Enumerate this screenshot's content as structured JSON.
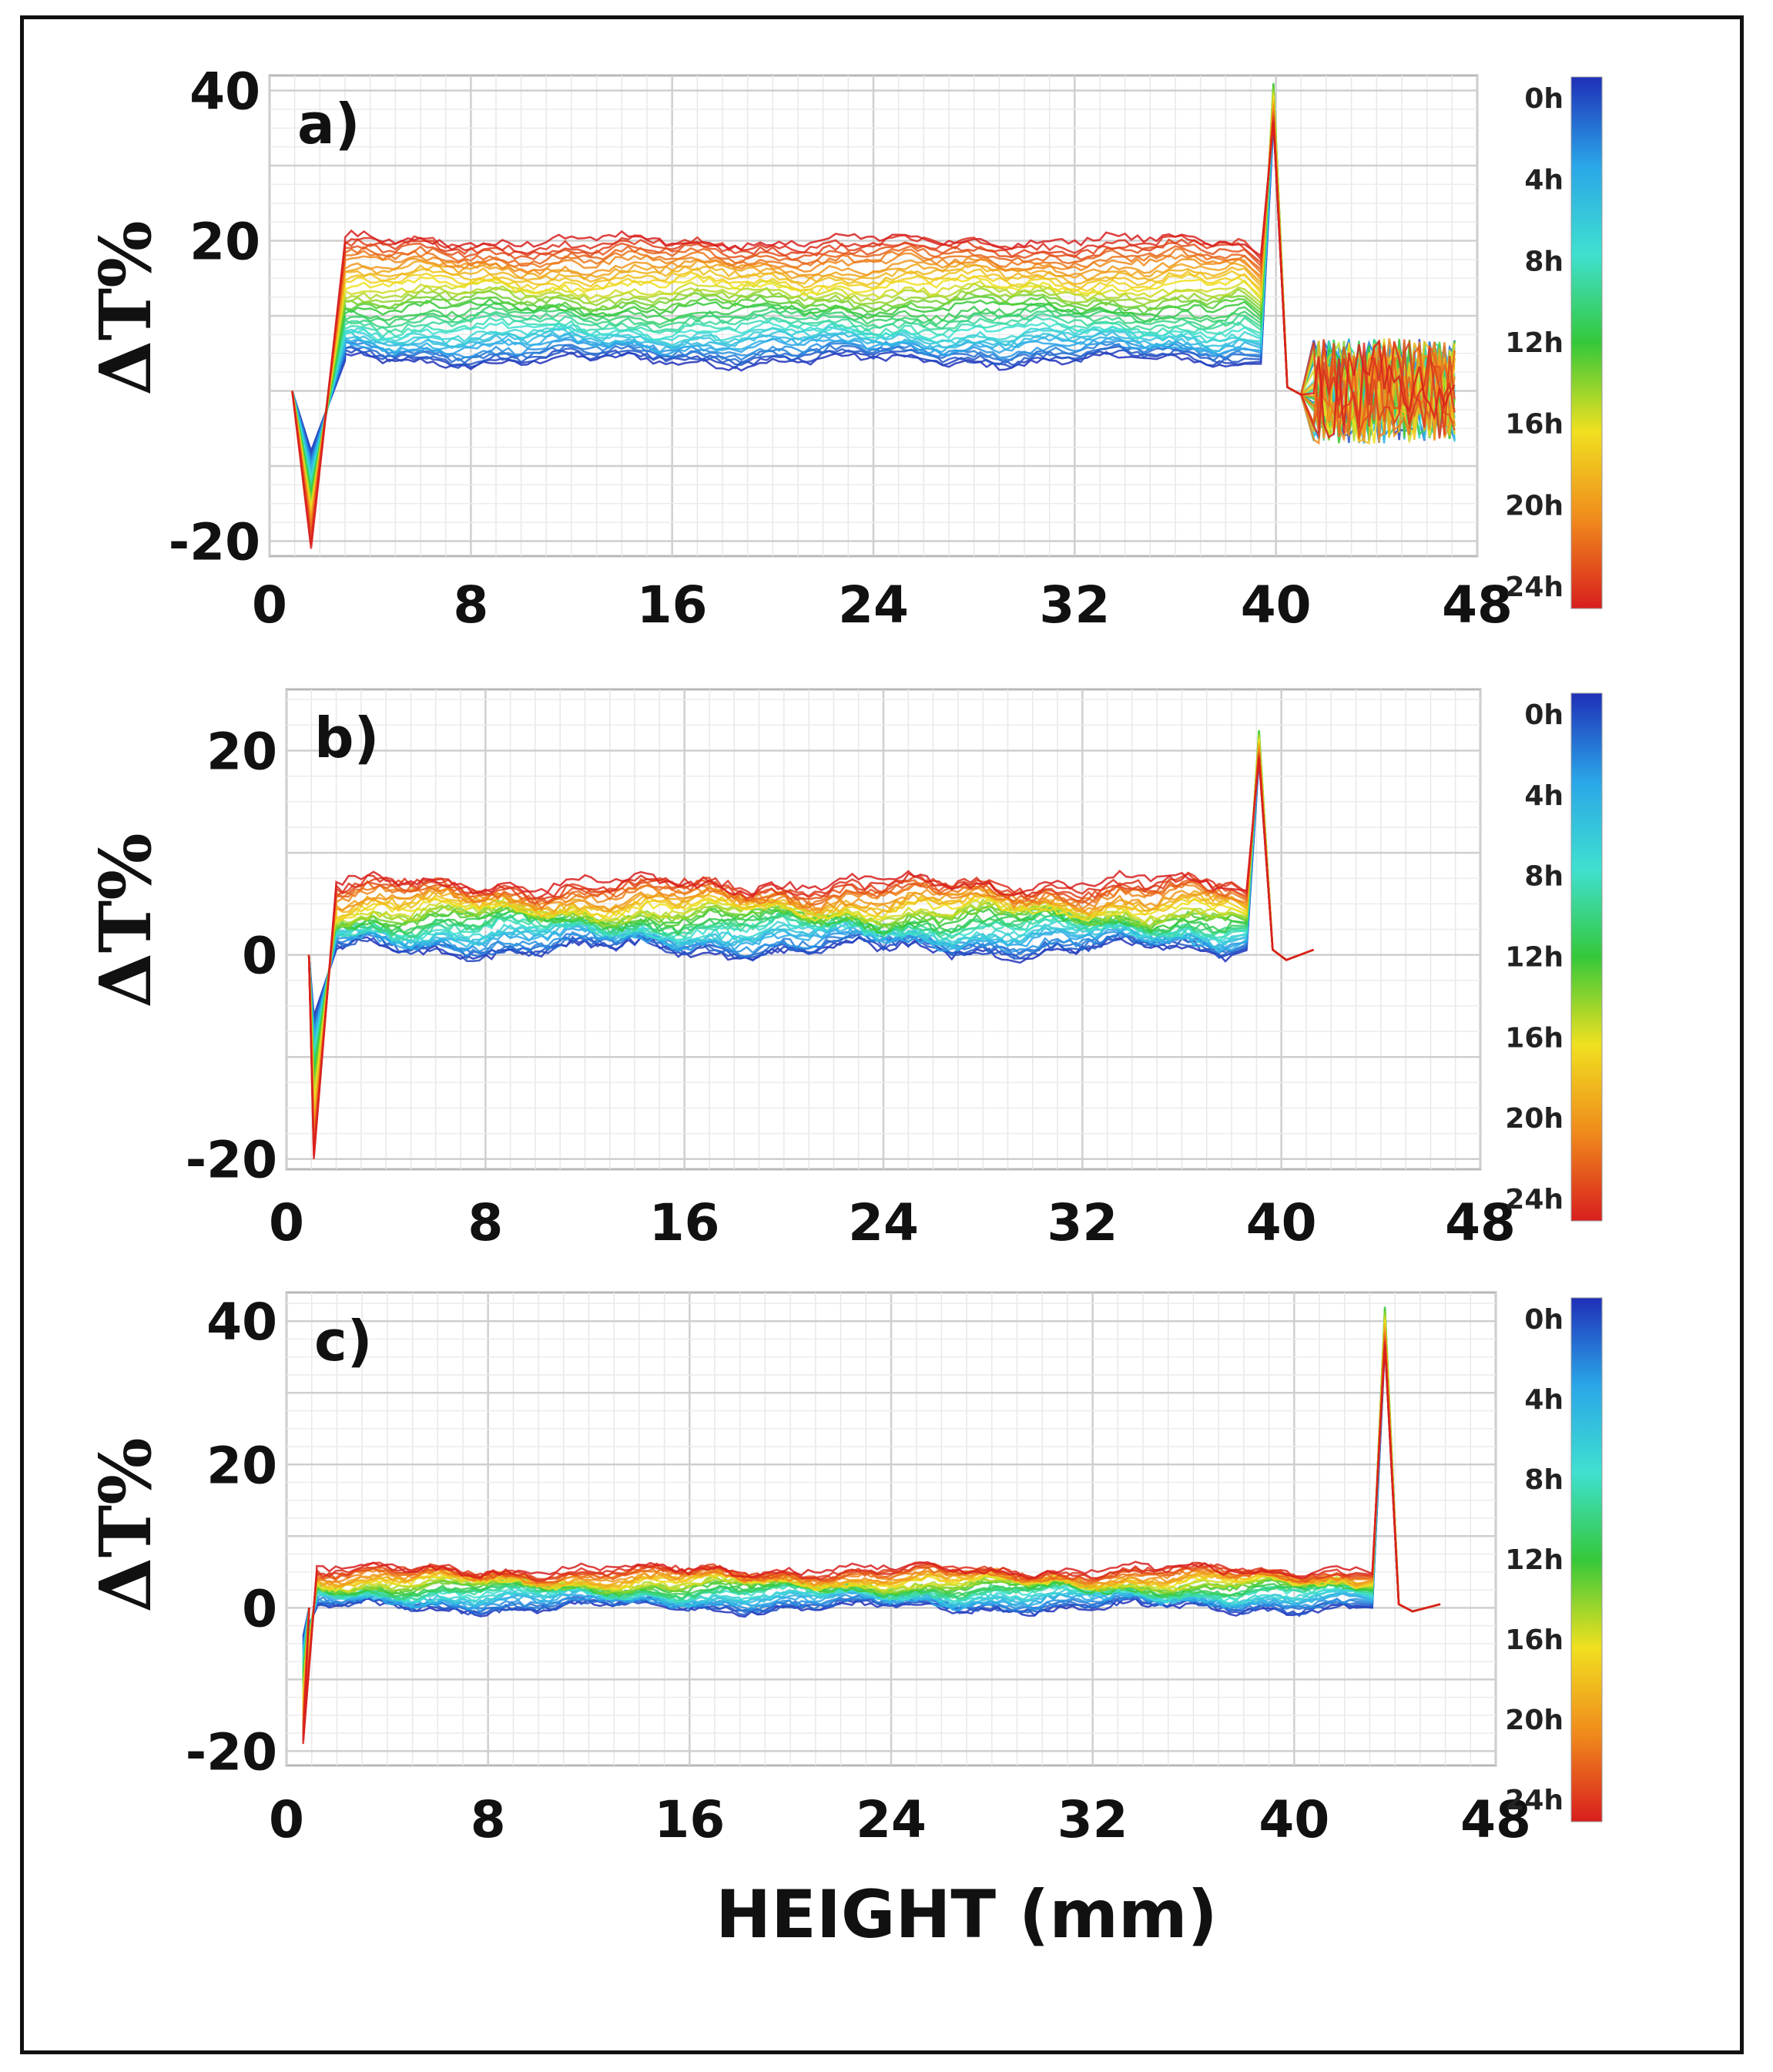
{
  "figure": {
    "x_axis_label": "HEIGHT (mm)",
    "colorbar_labels": [
      "0h",
      "4h",
      "8h",
      "12h",
      "16h",
      "20h",
      "24h"
    ],
    "colorbar_colors": [
      "#1f2fb8",
      "#2aa6e8",
      "#3fe0d0",
      "#35c83a",
      "#f0e020",
      "#f08a1c",
      "#d81e1e"
    ]
  },
  "chart_data": [
    {
      "type": "line",
      "panel_label": "a)",
      "ylabel": "ΔT%",
      "xlabel": "",
      "xlim": [
        0,
        48
      ],
      "ylim": [
        -22,
        42
      ],
      "x_ticks": [
        0,
        8,
        16,
        24,
        32,
        40,
        48
      ],
      "y_ticks": [
        -20,
        20,
        40
      ],
      "grid": true,
      "colorbar": "right",
      "plateau_start_mm": 3.0,
      "plateau_end_mm": 38.8,
      "peak_x_mm": 39.9,
      "peak_value": 41,
      "scatter_region_mm": [
        41.5,
        47.2
      ],
      "series": [
        {
          "time": "0h",
          "min_value": -8,
          "plateau_value": 4
        },
        {
          "time": "4h",
          "min_value": -10,
          "plateau_value": 6
        },
        {
          "time": "8h",
          "min_value": -12,
          "plateau_value": 8
        },
        {
          "time": "12h",
          "min_value": -14,
          "plateau_value": 11
        },
        {
          "time": "16h",
          "min_value": -16,
          "plateau_value": 14
        },
        {
          "time": "20h",
          "min_value": -18,
          "plateau_value": 17
        },
        {
          "time": "24h",
          "min_value": -21,
          "plateau_value": 20
        }
      ]
    },
    {
      "type": "line",
      "panel_label": "b)",
      "ylabel": "ΔT%",
      "xlabel": "",
      "xlim": [
        0,
        48
      ],
      "ylim": [
        -21,
        26
      ],
      "x_ticks": [
        0,
        8,
        16,
        24,
        32,
        40,
        48
      ],
      "y_ticks": [
        -20,
        0,
        20
      ],
      "grid": true,
      "colorbar": "right",
      "plateau_start_mm": 2.0,
      "plateau_end_mm": 38.0,
      "peak_x_mm": 39.1,
      "peak_value": 22,
      "scatter_region_mm": [],
      "series": [
        {
          "time": "0h",
          "min_value": -6,
          "plateau_value": 0.5
        },
        {
          "time": "4h",
          "min_value": -8,
          "plateau_value": 1.5
        },
        {
          "time": "8h",
          "min_value": -10,
          "plateau_value": 2.5
        },
        {
          "time": "12h",
          "min_value": -12,
          "plateau_value": 3.5
        },
        {
          "time": "16h",
          "min_value": -15,
          "plateau_value": 4.5
        },
        {
          "time": "20h",
          "min_value": -18,
          "plateau_value": 5.7
        },
        {
          "time": "24h",
          "min_value": -20,
          "plateau_value": 7
        }
      ]
    },
    {
      "type": "line",
      "panel_label": "c)",
      "ylabel": "ΔT%",
      "xlabel": "HEIGHT (mm)",
      "xlim": [
        0,
        48
      ],
      "ylim": [
        -22,
        44
      ],
      "x_ticks": [
        0,
        8,
        16,
        24,
        32,
        40,
        48
      ],
      "y_ticks": [
        -20,
        0,
        20,
        40
      ],
      "grid": true,
      "colorbar": "right",
      "plateau_start_mm": 1.2,
      "plateau_end_mm": 42.5,
      "peak_x_mm": 43.6,
      "peak_value": 42,
      "scatter_region_mm": [],
      "series": [
        {
          "time": "0h",
          "min_value": -4,
          "plateau_value": 0
        },
        {
          "time": "4h",
          "min_value": -6,
          "plateau_value": 1
        },
        {
          "time": "8h",
          "min_value": -8,
          "plateau_value": 2
        },
        {
          "time": "12h",
          "min_value": -10,
          "plateau_value": 2.8
        },
        {
          "time": "16h",
          "min_value": -13,
          "plateau_value": 3.6
        },
        {
          "time": "20h",
          "min_value": -16,
          "plateau_value": 4.4
        },
        {
          "time": "24h",
          "min_value": -19,
          "plateau_value": 5.3
        }
      ]
    }
  ]
}
